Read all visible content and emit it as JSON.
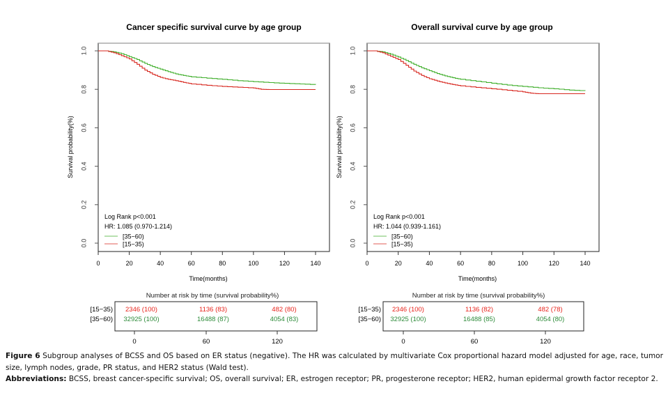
{
  "chart_data": [
    {
      "type": "line",
      "title": "Cancer specific survival curve by age group",
      "xlabel": "Time(months)",
      "ylabel": "Survival probability(%)",
      "xlim": [
        0,
        145
      ],
      "ylim": [
        0,
        1.0
      ],
      "xticks": [
        "0",
        "20",
        "40",
        "60",
        "80",
        "100",
        "120",
        "140"
      ],
      "yticks": [
        "0.0",
        "0.2",
        "0.4",
        "0.6",
        "0.8",
        "1.0"
      ],
      "grid": false,
      "annotations": [
        "Log Rank p<0.001",
        "HR: 1.085 (0.970-1.214)"
      ],
      "legend": {
        "placement": "bottom-left",
        "entries": [
          "[35−60)",
          "[15−35)"
        ]
      },
      "series": [
        {
          "name": "[35-60)",
          "color": "#3fae2a",
          "x": [
            0,
            5,
            10,
            15,
            20,
            25,
            30,
            35,
            40,
            45,
            50,
            55,
            60,
            70,
            80,
            90,
            100,
            110,
            120,
            130,
            140
          ],
          "y": [
            1.0,
            1.0,
            0.995,
            0.985,
            0.97,
            0.955,
            0.935,
            0.918,
            0.905,
            0.892,
            0.88,
            0.872,
            0.865,
            0.858,
            0.852,
            0.845,
            0.84,
            0.835,
            0.831,
            0.828,
            0.824
          ]
        },
        {
          "name": "[15-35)",
          "color": "#d7261e",
          "x": [
            0,
            5,
            10,
            15,
            20,
            25,
            30,
            35,
            40,
            45,
            50,
            55,
            60,
            70,
            80,
            90,
            100,
            105,
            110,
            120,
            130,
            140
          ],
          "y": [
            1.0,
            1.0,
            0.99,
            0.975,
            0.958,
            0.93,
            0.9,
            0.878,
            0.862,
            0.852,
            0.845,
            0.836,
            0.828,
            0.821,
            0.815,
            0.811,
            0.807,
            0.8,
            0.799,
            0.799,
            0.799,
            0.799
          ]
        }
      ],
      "risk_table": {
        "title": "Number at risk by time (survival probability%)",
        "times": [
          "0",
          "60",
          "120"
        ],
        "rows": [
          {
            "group": "[15−35)",
            "color": "#e8231b",
            "values": [
              "2346 (100)",
              "1136 (83)",
              "482 (80)"
            ]
          },
          {
            "group": "[35−60)",
            "color": "#2e8b3a",
            "values": [
              "32925 (100)",
              "16488 (87)",
              "4054 (83)"
            ]
          }
        ]
      }
    },
    {
      "type": "line",
      "title": "Overall survival curve by age group",
      "xlabel": "Time(months)",
      "ylabel": "Survival probability(%)",
      "xlim": [
        0,
        145
      ],
      "ylim": [
        0,
        1.0
      ],
      "xticks": [
        "0",
        "20",
        "40",
        "60",
        "80",
        "100",
        "120",
        "140"
      ],
      "yticks": [
        "0.0",
        "0.2",
        "0.4",
        "0.6",
        "0.8",
        "1.0"
      ],
      "grid": false,
      "annotations": [
        "Log Rank p<0.001",
        "HR: 1.044 (0.939-1.161)"
      ],
      "legend": {
        "placement": "bottom-left",
        "entries": [
          "[35−60)",
          "[15−35)"
        ]
      },
      "series": [
        {
          "name": "[35-60)",
          "color": "#3fae2a",
          "x": [
            0,
            5,
            10,
            15,
            20,
            25,
            30,
            35,
            40,
            45,
            50,
            55,
            60,
            70,
            80,
            90,
            100,
            110,
            120,
            130,
            140
          ],
          "y": [
            1.0,
            1.0,
            0.995,
            0.983,
            0.968,
            0.95,
            0.93,
            0.912,
            0.897,
            0.882,
            0.87,
            0.86,
            0.852,
            0.842,
            0.832,
            0.822,
            0.815,
            0.808,
            0.803,
            0.796,
            0.792
          ]
        },
        {
          "name": "[15-35)",
          "color": "#d7261e",
          "x": [
            0,
            5,
            10,
            15,
            20,
            25,
            30,
            35,
            40,
            45,
            50,
            55,
            60,
            70,
            80,
            90,
            100,
            105,
            110,
            120,
            130,
            140
          ],
          "y": [
            1.0,
            1.0,
            0.99,
            0.972,
            0.955,
            0.925,
            0.895,
            0.872,
            0.855,
            0.843,
            0.833,
            0.825,
            0.818,
            0.81,
            0.803,
            0.795,
            0.787,
            0.78,
            0.777,
            0.777,
            0.777,
            0.777
          ]
        }
      ],
      "risk_table": {
        "title": "Number at risk by time (survival probability%)",
        "times": [
          "0",
          "60",
          "120"
        ],
        "rows": [
          {
            "group": "[15−35)",
            "color": "#e8231b",
            "values": [
              "2346 (100)",
              "1136 (82)",
              "482 (78)"
            ]
          },
          {
            "group": "[35−60)",
            "color": "#2e8b3a",
            "values": [
              "32925 (100)",
              "16488 (85)",
              "4054 (80)"
            ]
          }
        ]
      }
    }
  ],
  "caption": {
    "figure_label": "Figure 6",
    "figure_text": "Subgroup analyses of BCSS and OS based on ER status (negative). The HR was calculated by multivariate Cox proportional hazard model adjusted for age, race, tumor size, lymph nodes, grade, PR status, and HER2 status (Wald test).",
    "abbrev_label": "Abbreviations:",
    "abbrev_text": "BCSS, breast cancer-specific survival; OS, overall survival; ER, estrogen receptor; PR, progesterone receptor; HER2, human epidermal growth factor receptor 2."
  }
}
